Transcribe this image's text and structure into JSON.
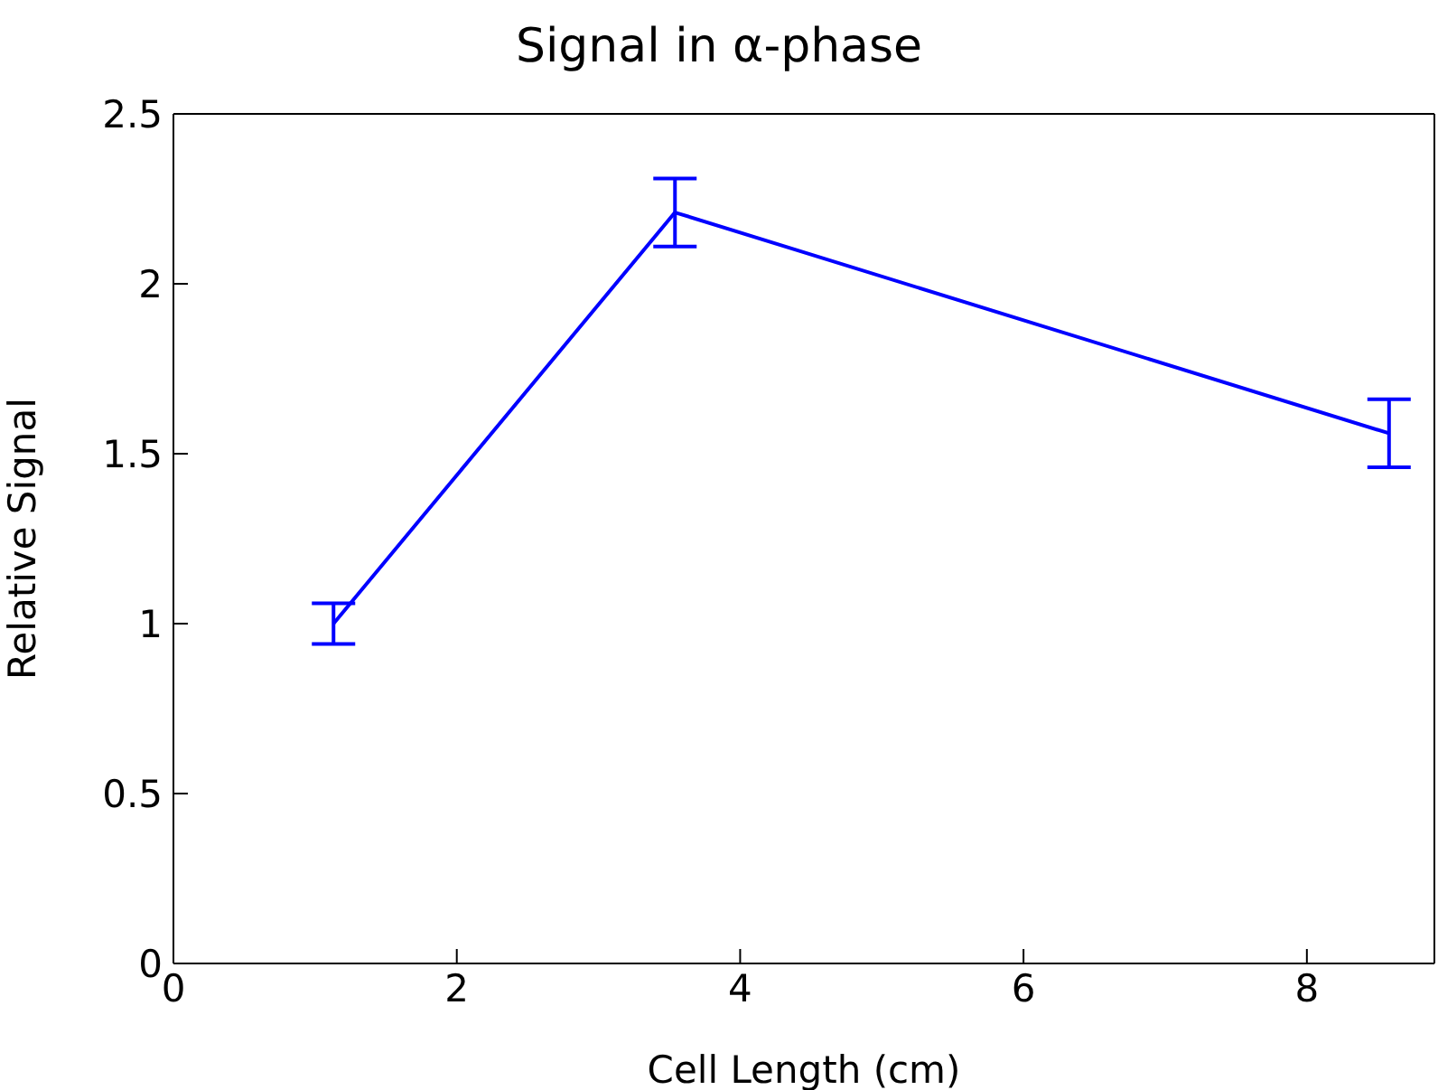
{
  "chart_data": {
    "type": "line",
    "title": "Signal in α-phase",
    "xlabel": "Cell Length (cm)",
    "ylabel": "Relative Signal",
    "x": [
      1.13,
      3.54,
      8.58
    ],
    "series": [
      {
        "color": "#0000ff",
        "values": [
          1.0,
          2.21,
          1.56
        ],
        "errors": [
          0.06,
          0.1,
          0.1
        ]
      }
    ],
    "xlim": [
      0,
      8.9
    ],
    "xticks": [
      0,
      2,
      4,
      6,
      8
    ],
    "ylim": [
      0,
      2.5
    ],
    "yticks": [
      0,
      0.5,
      1,
      1.5,
      2,
      2.5
    ],
    "grid": false,
    "marker": "none",
    "line_style": "solid"
  }
}
